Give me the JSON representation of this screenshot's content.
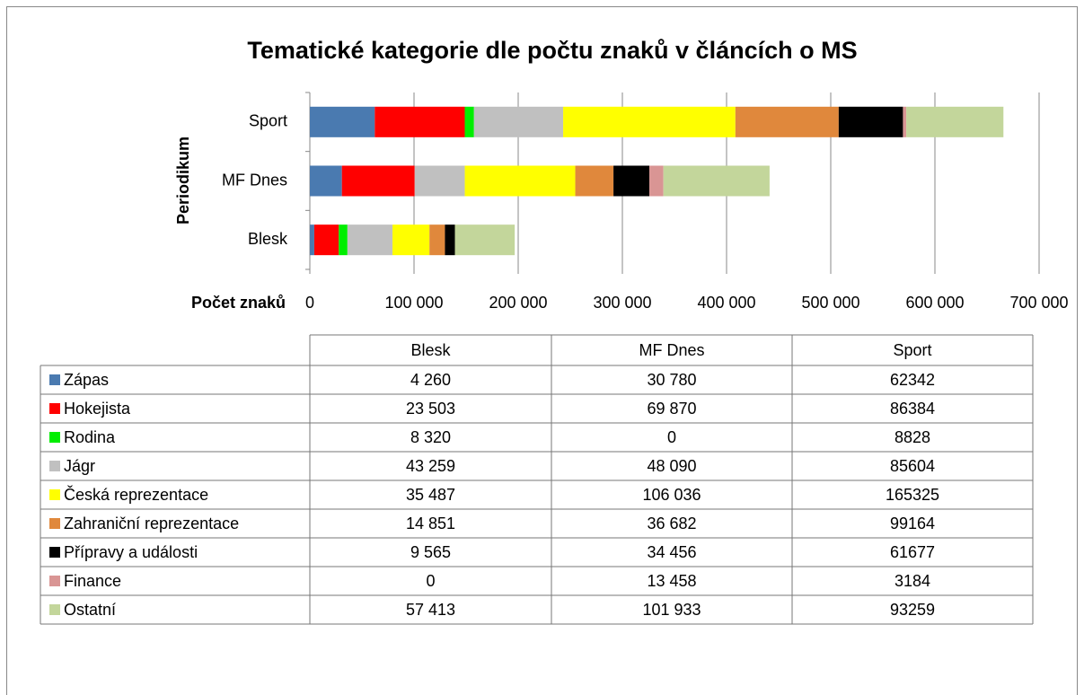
{
  "chart_data": {
    "type": "bar",
    "orientation": "horizontal",
    "stacked": true,
    "title": "Tematické kategorie dle počtu znaků v článcích o MS",
    "y_label": "Periodikum",
    "x_label": "Počet znaků",
    "categories": [
      "Blesk",
      "MF Dnes",
      "Sport"
    ],
    "xlim": [
      0,
      700000
    ],
    "xticks": [
      0,
      {
        "value": 100000,
        "label": "100 000"
      },
      {
        "value": 200000,
        "label": "200 000"
      },
      {
        "value": 300000,
        "label": "300 000"
      },
      {
        "value": 400000,
        "label": "400 000"
      },
      {
        "value": 500000,
        "label": "500 000"
      },
      {
        "value": 600000,
        "label": "600 000"
      },
      {
        "value": 700000,
        "label": "700 000"
      }
    ],
    "grid": true,
    "series": [
      {
        "name": "Zápas",
        "color": "#4a7ab0",
        "values": [
          4260,
          30780,
          62342
        ],
        "value_labels": [
          "4 260",
          "30 780",
          "62342"
        ]
      },
      {
        "name": "Hokejista",
        "color": "#ff0000",
        "values": [
          23503,
          69870,
          86384
        ],
        "value_labels": [
          "23 503",
          "69 870",
          "86384"
        ]
      },
      {
        "name": "Rodina",
        "color": "#00ee00",
        "values": [
          8320,
          0,
          8828
        ],
        "value_labels": [
          "8 320",
          "0",
          "8828"
        ]
      },
      {
        "name": "Jágr",
        "color": "#c0c0c0",
        "values": [
          43259,
          48090,
          85604
        ],
        "value_labels": [
          "43 259",
          "48 090",
          "85604"
        ]
      },
      {
        "name": "Česká reprezentace",
        "color": "#ffff00",
        "values": [
          35487,
          106036,
          165325
        ],
        "value_labels": [
          "35 487",
          "106 036",
          "165325"
        ]
      },
      {
        "name": "Zahraniční reprezentace",
        "color": "#e0883c",
        "values": [
          14851,
          36682,
          99164
        ],
        "value_labels": [
          "14 851",
          "36 682",
          "99164"
        ]
      },
      {
        "name": "Přípravy a události",
        "color": "#000000",
        "values": [
          9565,
          34456,
          61677
        ],
        "value_labels": [
          "9 565",
          "34 456",
          "61677"
        ]
      },
      {
        "name": "Finance",
        "color": "#d99594",
        "values": [
          0,
          13458,
          3184
        ],
        "value_labels": [
          "0",
          "13 458",
          "3184"
        ]
      },
      {
        "name": "Ostatní",
        "color": "#c3d69b",
        "values": [
          57413,
          101933,
          93259
        ],
        "value_labels": [
          "57 413",
          "101 933",
          "93259"
        ]
      }
    ]
  }
}
